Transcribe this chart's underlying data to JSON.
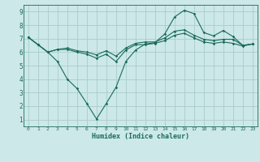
{
  "xlabel": "Humidex (Indice chaleur)",
  "bg_color": "#cce8e8",
  "grid_color": "#aacccc",
  "line_color": "#1a6b5a",
  "xlim": [
    -0.5,
    23.5
  ],
  "ylim": [
    0.5,
    9.5
  ],
  "xticks": [
    0,
    1,
    2,
    3,
    4,
    5,
    6,
    7,
    8,
    9,
    10,
    11,
    12,
    13,
    14,
    15,
    16,
    17,
    18,
    19,
    20,
    21,
    22,
    23
  ],
  "yticks": [
    1,
    2,
    3,
    4,
    5,
    6,
    7,
    8,
    9
  ],
  "line1_x": [
    0,
    1,
    2,
    3,
    4,
    5,
    6,
    7,
    8,
    9,
    10,
    11,
    12,
    13,
    14,
    15,
    16,
    17,
    18,
    19,
    20,
    21,
    22,
    23
  ],
  "line1_y": [
    7.1,
    6.55,
    6.0,
    5.3,
    4.0,
    3.3,
    2.2,
    1.05,
    2.2,
    3.4,
    5.3,
    6.15,
    6.6,
    6.7,
    7.35,
    8.6,
    9.1,
    8.85,
    7.45,
    7.2,
    7.6,
    7.15,
    6.5,
    6.6
  ],
  "line2_x": [
    0,
    1,
    2,
    3,
    4,
    5,
    6,
    7,
    8,
    9,
    10,
    11,
    12,
    13,
    14,
    15,
    16,
    17,
    18,
    19,
    20,
    21,
    22,
    23
  ],
  "line2_y": [
    7.1,
    6.55,
    6.0,
    6.2,
    6.2,
    6.0,
    5.85,
    5.55,
    5.85,
    5.3,
    6.15,
    6.55,
    6.55,
    6.65,
    6.85,
    7.25,
    7.4,
    7.05,
    6.75,
    6.65,
    6.75,
    6.65,
    6.45,
    6.6
  ],
  "line3_x": [
    0,
    1,
    2,
    3,
    4,
    5,
    6,
    7,
    8,
    9,
    10,
    11,
    12,
    13,
    14,
    15,
    16,
    17,
    18,
    19,
    20,
    21,
    22,
    23
  ],
  "line3_y": [
    7.1,
    6.55,
    6.0,
    6.2,
    6.3,
    6.1,
    6.0,
    5.8,
    6.1,
    5.7,
    6.3,
    6.65,
    6.75,
    6.75,
    7.05,
    7.55,
    7.65,
    7.25,
    6.95,
    6.85,
    6.95,
    6.95,
    6.5,
    6.6
  ]
}
